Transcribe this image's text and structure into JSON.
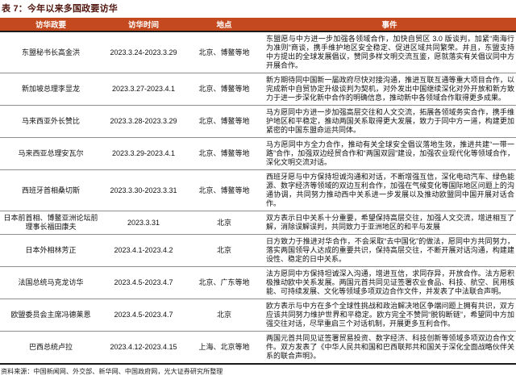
{
  "title": "表 7：今年以来多国政要访华",
  "source_note": "资料来源：中国新闻网、外交部、新华网、中国政府网，光大证券研究所整理",
  "colors": {
    "header_bg": "#C5491E",
    "title_color": "#4F150D",
    "header_text": "#FFFFFF",
    "body_text": "#111111",
    "row_divider": "#8F8F8F",
    "heavy_divider": "#1A1A1A",
    "source_text": "#222222"
  },
  "table": {
    "columns": [
      "访华政要",
      "访华时间",
      "地点",
      "事件"
    ],
    "rows": [
      {
        "dignitary": "东盟秘书长高金洪",
        "period": "2023.3.24-2023.3.29",
        "location": "北京、博鳌等地",
        "event": "东盟愿与中方进一步加强各领域合作，加快自贸区 3.0 版谈判，加紧“南海行为准则”商谈，携手维护地区安全稳定、促进区域共同繁荣。并且，东盟支持中方提出的全球发展倡议，赞同多样文明交流互鉴，愿就落实有关倡议同中方开展合作。"
      },
      {
        "dignitary": "新加坡总理李显龙",
        "period": "2023.3.27-2023.4.1",
        "location": "北京、博鳌等地",
        "event": "新方期待同中国新一届政府尽快对接沟通，推进互联互通等重大项目合作，以完成新中自贸协定升级谈判为契机，对外发出中国继续深化对外开放和新方致力于进一步深化新中合作的明确信息，推动新中各领域合作取得更多成果。"
      },
      {
        "dignitary": "马来西亚外长赞比",
        "period": "2023.3.28-2023.3.29",
        "location": "北京、博鳌等地",
        "event": "马方愿同中方进一步加强高层交往和人文交流，拓展各领域务实合作，携手维护地区和平稳定，推动两国关系取得更大发展，致力于同中方一道，构建更加紧密的中国东盟命运共同体。"
      },
      {
        "dignitary": "马来西亚总理安瓦尔",
        "period": "2023.3.29-2023.4.1",
        "location": "北京、博鳌等地",
        "event": "马方愿同中方全力合作，推动有关全球安全倡议落地生效，推进共建“一带一路”合作，加强双边经贸合作和“两国双园”建设，加强农业现代化等领域合作，深化文明交流对话。"
      },
      {
        "dignitary": "西班牙首相桑切斯",
        "period": "2023.3.30-2023.3.31",
        "location": "北京、博鳌等地",
        "event": "西班牙愿与中方保持坦诚沟通和对话，不断增强互信，深化电动汽车、绿色能源、数字经济等领域的双边互利合作，加强在气候变化等国际地区问题上的沟通协调，共同努力推动西中关系进一步发展以及推动欧盟同中国开展对话合作。"
      },
      {
        "dignitary": "日本前首相、博鳌亚洲论坛前理事长福田康夫",
        "period": "2023.3.31",
        "location": "北京",
        "event": "双方表示日中关系十分重要，希望保持高层交往，加强人文交流，增进相互了解，消除误解误判，共同致力于亚洲地区的和平与发展"
      },
      {
        "dignitary": "日本外相林芳正",
        "period": "2023.4.1-2023.4.2",
        "location": "北京",
        "event": "日方致力于推进对华合作，不会采取“去中国化”的做法，愿同中方共同努力，落实两国领导人达成的重要共识，保持高层交往，不断开展对话沟通，构建建设性、稳定的日中关系。"
      },
      {
        "dignitary": "法国总统马克龙访华",
        "period": "2023.4.5-2023.4.7",
        "location": "北京、广东等地",
        "event": "法方愿同中方保持坦诚深入沟通，增进互信，求同存异，开放合作。法方愿积极推动欧中关系发展。两国元首共同见证签署农业食品、科技、航空、民用核能、可持续发展、文化等领域多项双边合作文件，并发表了中法联合声明。"
      },
      {
        "dignitary": "欧盟委员会主席冯德莱恩",
        "period": "2023.4.5-2023.4.7",
        "location": "北京",
        "event": "欧方表示与中方在多个全球性挑战和政治解决地区争端问题上拥有共识，双方应该共同努力维护世界和平稳定。欧方完全不赞同“脱钩断链”，希望同中方加强交往对话，尽早重启三个对话机制，开展更多互利合作。"
      },
      {
        "dignitary": "巴西总统卢拉",
        "period": "2023.4.12-2023.4.15",
        "location": "上海、北京等地",
        "event": "两国元首共同见证签署贸易投资、数字经济、科技创新等领域多项双边合作文件。双方发表了《中华人民共和国和巴西联邦共和国关于深化全面战略伙伴关系的联合声明》。"
      }
    ]
  }
}
